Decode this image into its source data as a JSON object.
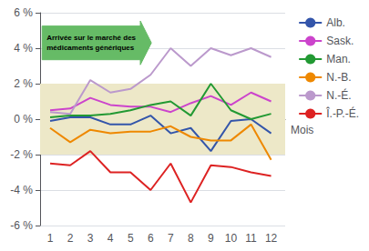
{
  "chart_data": {
    "type": "line",
    "x": [
      1,
      2,
      3,
      4,
      5,
      6,
      7,
      8,
      9,
      10,
      11,
      12
    ],
    "xlabel": "Mois",
    "xlim": [
      0.5,
      12.7
    ],
    "xticks": [
      1,
      2,
      3,
      4,
      5,
      6,
      7,
      8,
      9,
      10,
      11,
      12
    ],
    "ylim": [
      -6,
      6
    ],
    "yticks": [
      {
        "value": -6,
        "label": "-6 %"
      },
      {
        "value": -4,
        "label": "-4 %"
      },
      {
        "value": -2,
        "label": "-2 %"
      },
      {
        "value": 0,
        "label": "0 %"
      },
      {
        "value": 2,
        "label": "2 %"
      },
      {
        "value": 4,
        "label": "4 %"
      },
      {
        "value": 6,
        "label": "6 %"
      }
    ],
    "grid": true,
    "legend": "right",
    "series": [
      {
        "name": "Alb.",
        "color": "#3355aa",
        "values": [
          -0.1,
          0.1,
          0.1,
          -0.3,
          -0.3,
          0.2,
          -0.8,
          -0.5,
          -1.8,
          -0.1,
          0.0,
          -0.8
        ]
      },
      {
        "name": "Sask.",
        "color": "#cc44cc",
        "values": [
          0.5,
          0.6,
          1.2,
          0.8,
          0.7,
          0.7,
          0.4,
          0.9,
          1.3,
          0.8,
          1.5,
          1.0
        ]
      },
      {
        "name": "Man.",
        "color": "#229933",
        "values": [
          0.1,
          0.2,
          0.2,
          0.3,
          0.5,
          0.8,
          1.0,
          0.2,
          2.0,
          0.5,
          0.0,
          0.3
        ]
      },
      {
        "name": "N.-B.",
        "color": "#ee8800",
        "values": [
          -0.5,
          -1.3,
          -0.6,
          -0.8,
          -0.7,
          -0.7,
          -0.4,
          -1.0,
          -1.2,
          -1.2,
          -0.3,
          -2.3
        ]
      },
      {
        "name": "N.-É.",
        "color": "#bb99cc",
        "values": [
          0.4,
          0.3,
          2.2,
          1.5,
          1.7,
          2.5,
          4.0,
          3.0,
          4.0,
          3.6,
          4.0,
          3.5
        ]
      },
      {
        "name": "Î.-P.-É.",
        "color": "#dd2222",
        "values": [
          -2.5,
          -2.6,
          -1.8,
          -3.0,
          -3.0,
          -4.0,
          -2.5,
          -4.7,
          -2.6,
          -2.7,
          -3.0,
          -3.2
        ]
      }
    ],
    "bands": [
      {
        "range": [
          -2,
          2
        ],
        "color": "#ede8c8"
      }
    ],
    "annotations": [
      {
        "text": [
          "Arrivée sur le marché des",
          "médicaments génériques"
        ],
        "color": "#66bb66"
      }
    ]
  }
}
